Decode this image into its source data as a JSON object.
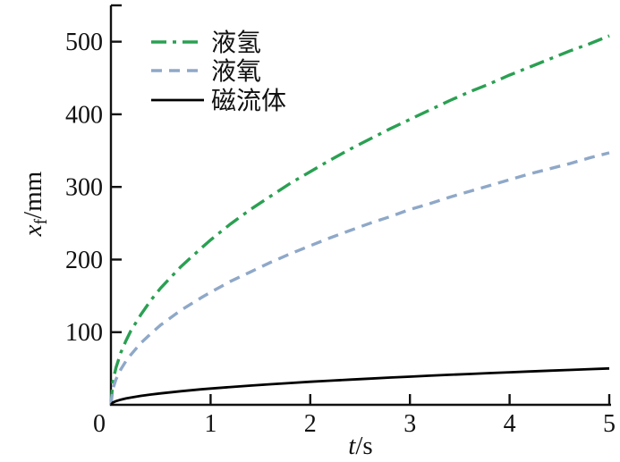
{
  "figure": {
    "background": "#ffffff",
    "axis_color": "#111111"
  },
  "chart_data": {
    "type": "line",
    "title": "",
    "xlabel": {
      "var": "t",
      "unit": "/s"
    },
    "ylabel": {
      "var": "x",
      "sub": "f",
      "unit": "/mm"
    },
    "xlim": [
      0,
      5
    ],
    "ylim": [
      0,
      550
    ],
    "grid": false,
    "legend_position": "top-left-inside",
    "xticks": [
      {
        "value": 0,
        "label": "0"
      },
      {
        "value": 1,
        "label": "1"
      },
      {
        "value": 2,
        "label": "2"
      },
      {
        "value": 3,
        "label": "3"
      },
      {
        "value": 4,
        "label": "4"
      },
      {
        "value": 5,
        "label": "5"
      }
    ],
    "yticks": [
      {
        "value": 100,
        "label": "100"
      },
      {
        "value": 200,
        "label": "200"
      },
      {
        "value": 300,
        "label": "300"
      },
      {
        "value": 400,
        "label": "400"
      },
      {
        "value": 500,
        "label": "500"
      },
      {
        "value": 550,
        "label": ""
      }
    ],
    "x": [
      0,
      0.02,
      0.05,
      0.1,
      0.15,
      0.2,
      0.3,
      0.4,
      0.5,
      0.7,
      0.9,
      1,
      1.2,
      1.4,
      1.6,
      1.8,
      2,
      2.2,
      2.4,
      2.6,
      2.8,
      3,
      3.2,
      3.4,
      3.6,
      3.8,
      4,
      4.2,
      4.4,
      4.6,
      4.8,
      5
    ],
    "series": [
      {
        "id": "liquid-hydrogen",
        "name": "液氢",
        "color": "#2aa052",
        "style": "dash-dot",
        "width": 3.4,
        "values": [
          0,
          32,
          51,
          72,
          88,
          102,
          124,
          144,
          161,
          190,
          215,
          227,
          249,
          269,
          287,
          305,
          321,
          337,
          352,
          366,
          380,
          393,
          406,
          419,
          431,
          442,
          454,
          465,
          476,
          487,
          497,
          508
        ]
      },
      {
        "id": "liquid-oxygen",
        "name": "液氧",
        "color": "#8fa8c8",
        "style": "dashed",
        "width": 3.4,
        "values": [
          0,
          22,
          35,
          49,
          60,
          69,
          85,
          98,
          110,
          130,
          147,
          155,
          170,
          183,
          196,
          208,
          219,
          230,
          240,
          250,
          259,
          269,
          277,
          286,
          294,
          302,
          310,
          318,
          325,
          332,
          340,
          347
        ]
      },
      {
        "id": "ferrofluid",
        "name": "磁流体",
        "color": "#000000",
        "style": "solid",
        "width": 2.8,
        "values": [
          0,
          3.2,
          5,
          7.1,
          8.7,
          10,
          12.3,
          14.2,
          15.8,
          18.7,
          21.3,
          22.4,
          24.5,
          26.5,
          28.3,
          30,
          31.7,
          33.2,
          34.7,
          36.1,
          37.5,
          38.8,
          40.1,
          41.3,
          42.5,
          43.7,
          44.8,
          45.9,
          47,
          48,
          49.1,
          50.1
        ]
      }
    ]
  }
}
